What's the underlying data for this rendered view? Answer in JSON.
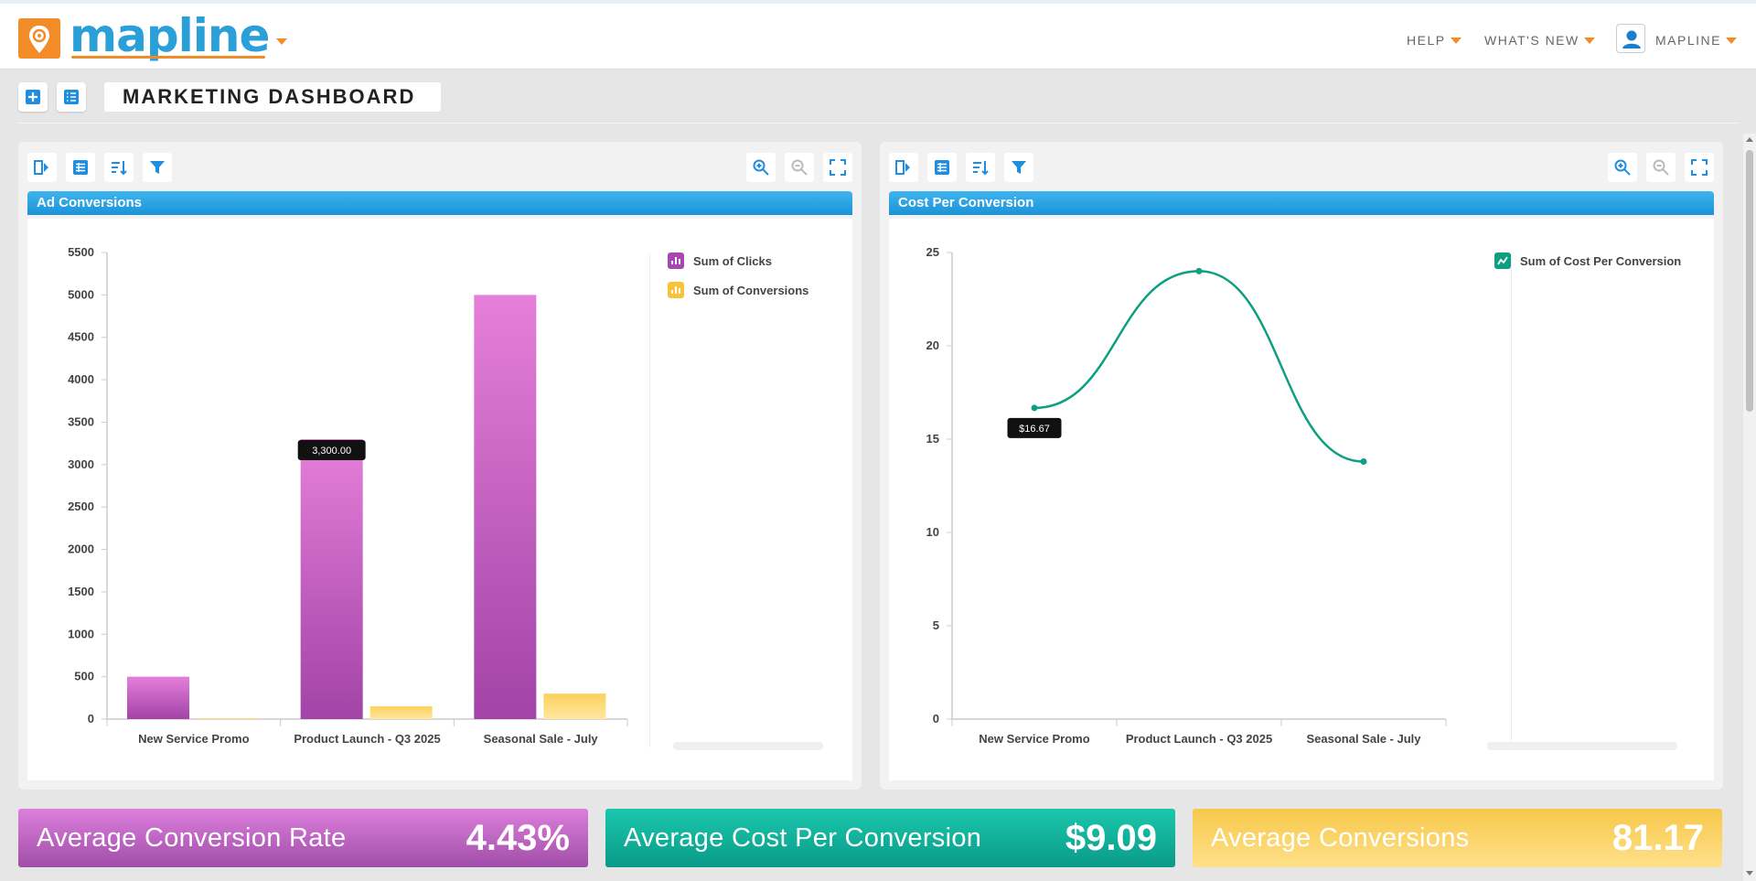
{
  "app": {
    "logo_text": "mapline"
  },
  "nav": {
    "help": "HELP",
    "whats_new": "WHAT'S NEW",
    "user": "MAPLINE"
  },
  "dashboard": {
    "title": "MARKETING DASHBOARD"
  },
  "panels": [
    {
      "title": "Ad Conversions"
    },
    {
      "title": "Cost Per Conversion"
    }
  ],
  "chart_data": [
    {
      "type": "bar",
      "title": "Ad Conversions",
      "categories": [
        "New Service Promo",
        "Product Launch - Q3 2025",
        "Seasonal Sale - July"
      ],
      "series": [
        {
          "name": "Sum of Clicks",
          "values": [
            500,
            3300,
            5000
          ],
          "color": "#c04fc2"
        },
        {
          "name": "Sum of Conversions",
          "values": [
            10,
            150,
            300
          ],
          "color": "#f8cf4a"
        }
      ],
      "ylim": [
        0,
        5500
      ],
      "yticks": [
        0,
        500,
        1000,
        1500,
        2000,
        2500,
        3000,
        3500,
        4000,
        4500,
        5000,
        5500
      ],
      "tooltip": {
        "text": "3,300.00",
        "category_index": 1,
        "series_index": 0
      },
      "legend": "right"
    },
    {
      "type": "line",
      "title": "Cost Per Conversion",
      "categories": [
        "New Service Promo",
        "Product Launch - Q3 2025",
        "Seasonal Sale - July"
      ],
      "series": [
        {
          "name": "Sum of Cost Per Conversion",
          "values": [
            16.67,
            24,
            13.8
          ],
          "color": "#0e9e82"
        }
      ],
      "ylim": [
        0,
        25
      ],
      "yticks": [
        0,
        5,
        10,
        15,
        20,
        25
      ],
      "tooltip": {
        "text": "$16.67",
        "category_index": 0,
        "series_index": 0
      },
      "legend": "right"
    }
  ],
  "kpis": [
    {
      "label": "Average Conversion Rate",
      "value": "4.43%",
      "colors": [
        "#dc7fdc",
        "#a04ea8"
      ]
    },
    {
      "label": "Average Cost Per Conversion",
      "value": "$9.09",
      "colors": [
        "#1ac8ad",
        "#0a9a88"
      ]
    },
    {
      "label": "Average Conversions",
      "value": "81.17",
      "colors": [
        "#f6c84a",
        "#ffe08a"
      ]
    }
  ]
}
